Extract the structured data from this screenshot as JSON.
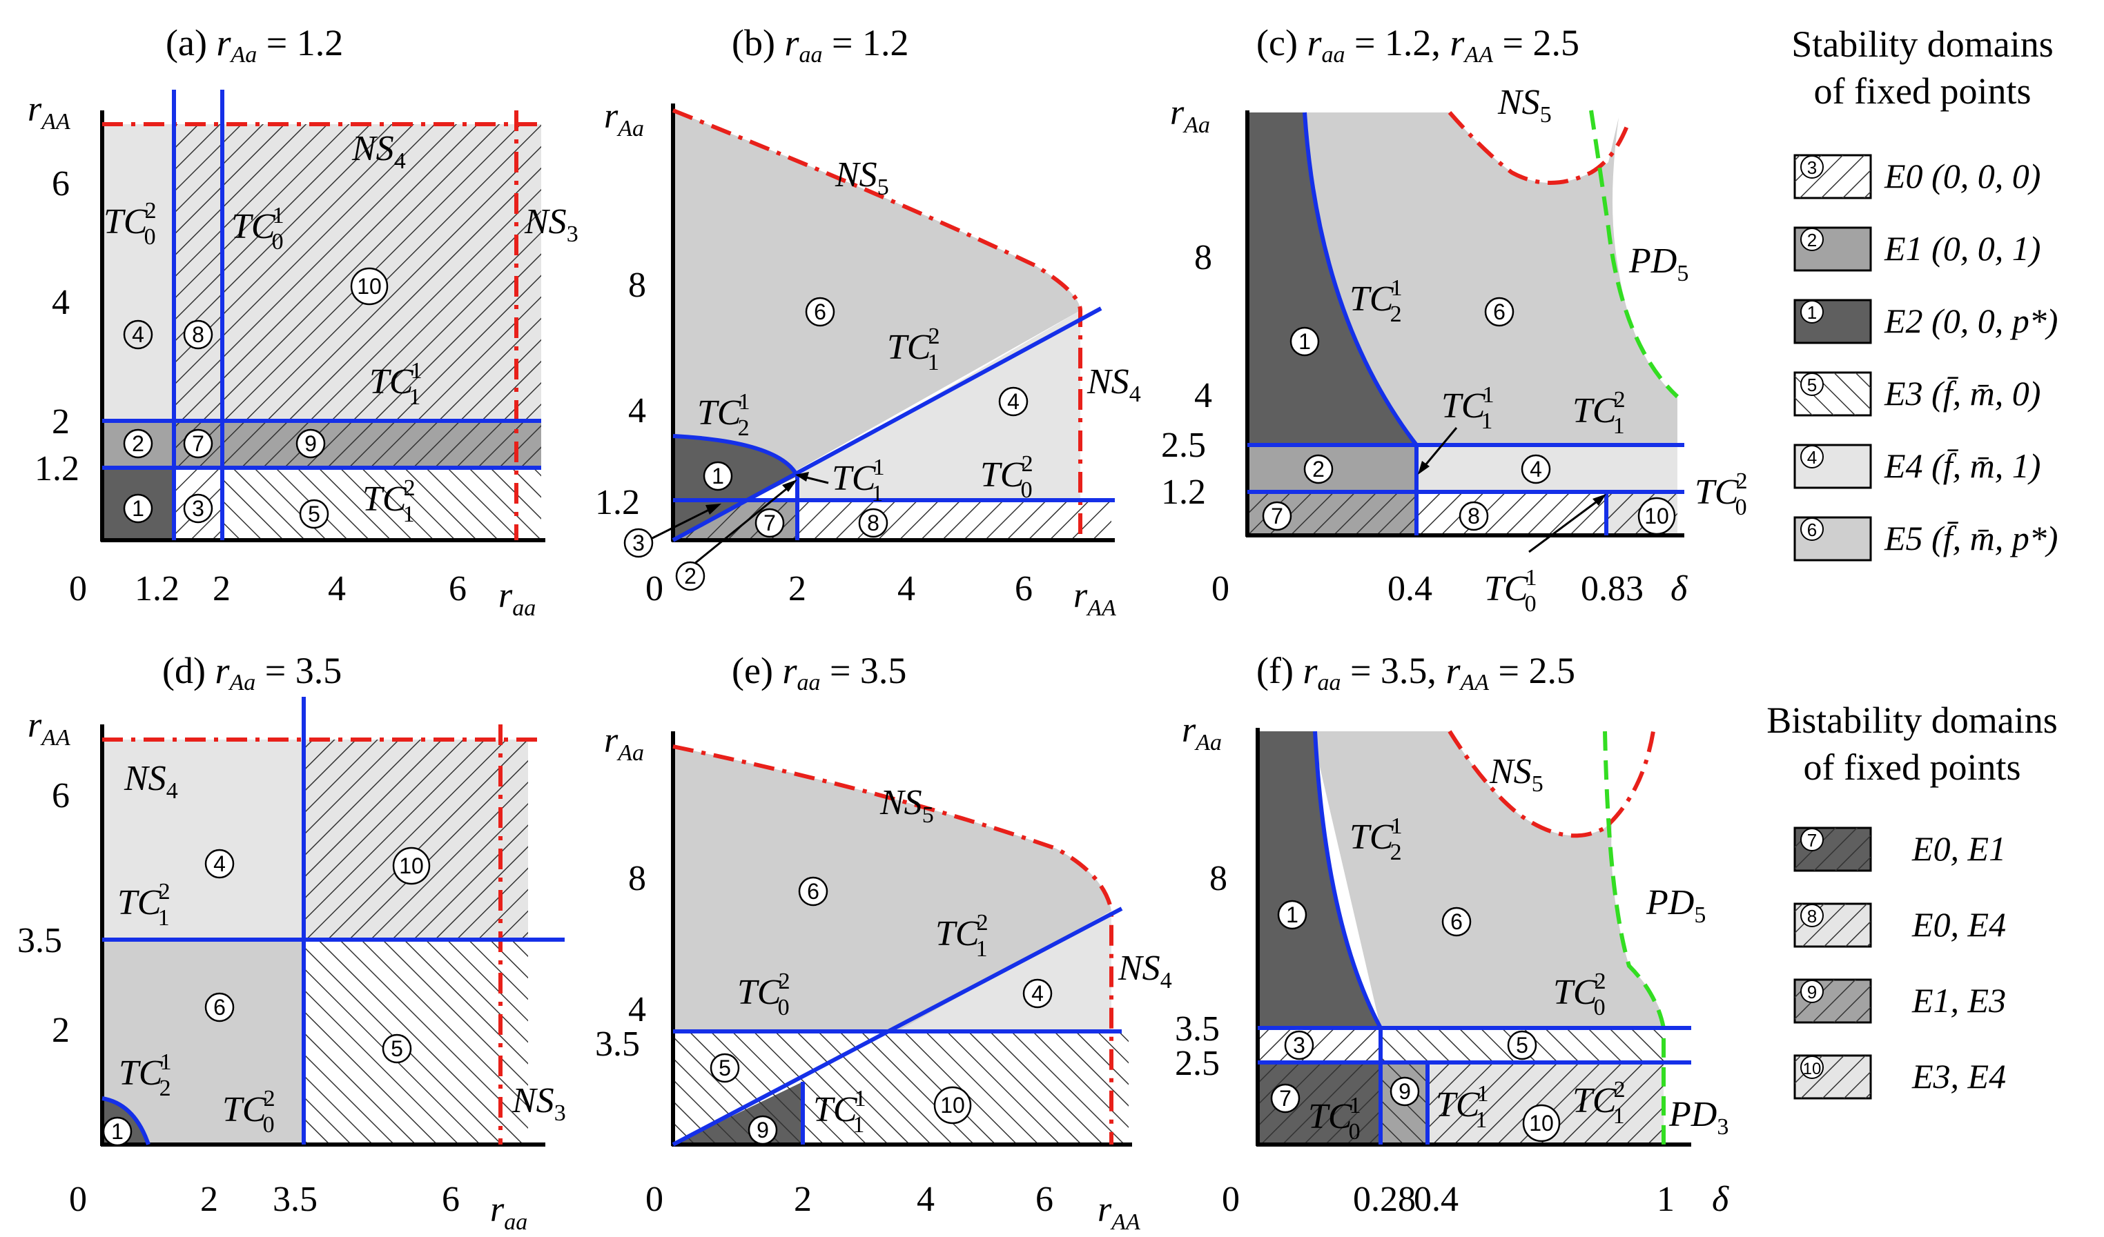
{
  "figure": {
    "panels": [
      {
        "id": "a",
        "title": "(a) rAa = 1.2",
        "x_label": "raa",
        "y_label": "rAA",
        "x_ticks": [
          "0",
          "1.2",
          "2",
          "4",
          "6"
        ],
        "y_ticks": [
          "6",
          "4",
          "2",
          "1.2"
        ],
        "curve_labels": [
          "TC02",
          "TC01",
          "NS4",
          "NS3",
          "TC11",
          "TC12"
        ],
        "regions": [
          "1",
          "2",
          "3",
          "4",
          "5",
          "7",
          "8",
          "9",
          "10"
        ]
      },
      {
        "id": "b",
        "title": "(b) raa = 1.2",
        "x_label": "rAA",
        "y_label": "rAa",
        "x_ticks": [
          "0",
          "2",
          "4",
          "6"
        ],
        "y_ticks": [
          "8",
          "4",
          "1.2"
        ],
        "curve_labels": [
          "NS5",
          "TC21",
          "TC12",
          "NS4",
          "TC11",
          "TC02"
        ],
        "regions": [
          "1",
          "2",
          "3",
          "4",
          "6",
          "7",
          "8"
        ]
      },
      {
        "id": "c",
        "title": "(c) raa = 1.2, rAA = 2.5",
        "x_label": "δ",
        "y_label": "rAa",
        "x_ticks": [
          "0",
          "0.4",
          "0.83"
        ],
        "y_ticks": [
          "8",
          "4",
          "2.5",
          "1.2"
        ],
        "curve_labels": [
          "NS5",
          "PD5",
          "TC21",
          "TC11",
          "TC12",
          "TC02",
          "TC01"
        ],
        "regions": [
          "1",
          "2",
          "4",
          "6",
          "7",
          "8",
          "10"
        ]
      },
      {
        "id": "d",
        "title": "(d) rAa = 3.5",
        "x_label": "raa",
        "y_label": "rAA",
        "x_ticks": [
          "0",
          "2",
          "3.5",
          "6"
        ],
        "y_ticks": [
          "6",
          "3.5",
          "2"
        ],
        "curve_labels": [
          "NS4",
          "TC12",
          "TC21",
          "TC02",
          "NS3"
        ],
        "regions": [
          "1",
          "4",
          "5",
          "6",
          "10"
        ]
      },
      {
        "id": "e",
        "title": "(e) raa = 3.5",
        "x_label": "rAA",
        "y_label": "rAa",
        "x_ticks": [
          "0",
          "2",
          "4",
          "6"
        ],
        "y_ticks": [
          "8",
          "4",
          "3.5"
        ],
        "curve_labels": [
          "NS5",
          "TC12",
          "TC02",
          "NS4",
          "TC11"
        ],
        "regions": [
          "4",
          "5",
          "6",
          "9",
          "10"
        ]
      },
      {
        "id": "f",
        "title": "(f) raa = 3.5, rAA = 2.5",
        "x_label": "δ",
        "y_label": "rAa",
        "x_ticks": [
          "0",
          "0.28",
          "0.4",
          "1"
        ],
        "y_ticks": [
          "8",
          "3.5",
          "2.5"
        ],
        "curve_labels": [
          "NS5",
          "TC21",
          "PD5",
          "TC02",
          "TC01",
          "TC11",
          "TC12",
          "PD3"
        ],
        "regions": [
          "1",
          "3",
          "5",
          "6",
          "7",
          "9",
          "10"
        ]
      }
    ]
  },
  "legend": {
    "stability_title_1": "Stability domains",
    "stability_title_2": "of fixed points",
    "stability": [
      {
        "num": "3",
        "label": "E0 (0, 0, 0)"
      },
      {
        "num": "2",
        "label": "E1 (0, 0, 1)"
      },
      {
        "num": "1",
        "label": "E2 (0, 0, p*)"
      },
      {
        "num": "5",
        "label": "E3 (f̄, m̄, 0)"
      },
      {
        "num": "4",
        "label": "E4 (f̄, m̄, 1)"
      },
      {
        "num": "6",
        "label": "E5 (f̄, m̄, p*)"
      }
    ],
    "bistability_title_1": "Bistability domains",
    "bistability_title_2": "of fixed points",
    "bistability": [
      {
        "num": "7",
        "label": "E0, E1"
      },
      {
        "num": "8",
        "label": "E0, E4"
      },
      {
        "num": "9",
        "label": "E1, E3"
      },
      {
        "num": "10",
        "label": "E3, E4"
      }
    ]
  },
  "colors": {
    "very_light": "#e5e5e5",
    "light": "#cfcfcf",
    "mid": "#a3a3a3",
    "dark": "#5f5f5f",
    "blue": "#1530e8",
    "red": "#e8201a",
    "green": "#33dd22"
  }
}
